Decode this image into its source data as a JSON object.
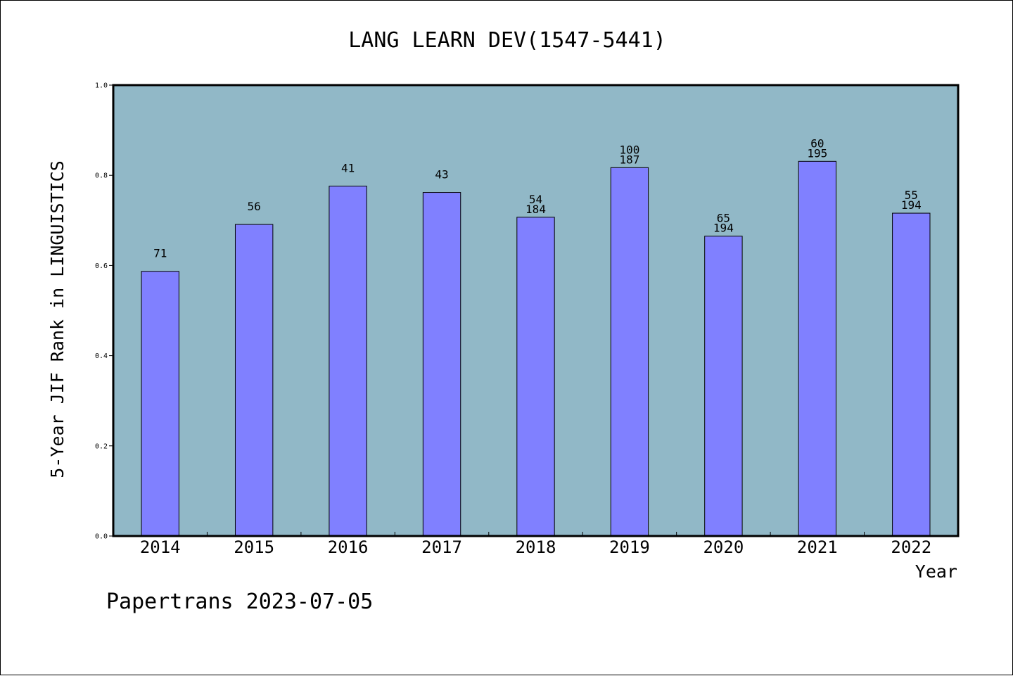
{
  "chart_data": {
    "type": "bar",
    "title": "LANG LEARN DEV(1547-5441)",
    "xlabel": "Year",
    "ylabel": "5-Year JIF Rank in LINGUISTICS",
    "footer": "Papertrans 2023-07-05",
    "categories": [
      "2014",
      "2015",
      "2016",
      "2017",
      "2018",
      "2019",
      "2020",
      "2021",
      "2022"
    ],
    "values": [
      0.587,
      0.691,
      0.776,
      0.762,
      0.707,
      0.817,
      0.665,
      0.831,
      0.716
    ],
    "bar_labels": [
      [
        "71"
      ],
      [
        "56"
      ],
      [
        "41"
      ],
      [
        "43"
      ],
      [
        "54",
        "184"
      ],
      [
        "100",
        "187"
      ],
      [
        "65",
        "194"
      ],
      [
        "60",
        "195"
      ],
      [
        "55",
        "194"
      ]
    ],
    "ylim": [
      0,
      1.0
    ],
    "yticks": [
      "0.0",
      "0.2",
      "0.4",
      "0.6",
      "0.8",
      "1.0"
    ],
    "grid": false,
    "legend": "none",
    "colors": {
      "plot_background": "#91b8c7",
      "bar_fill": "#8080ff",
      "bar_edge": "#000000",
      "axes_edge": "#000000"
    }
  }
}
